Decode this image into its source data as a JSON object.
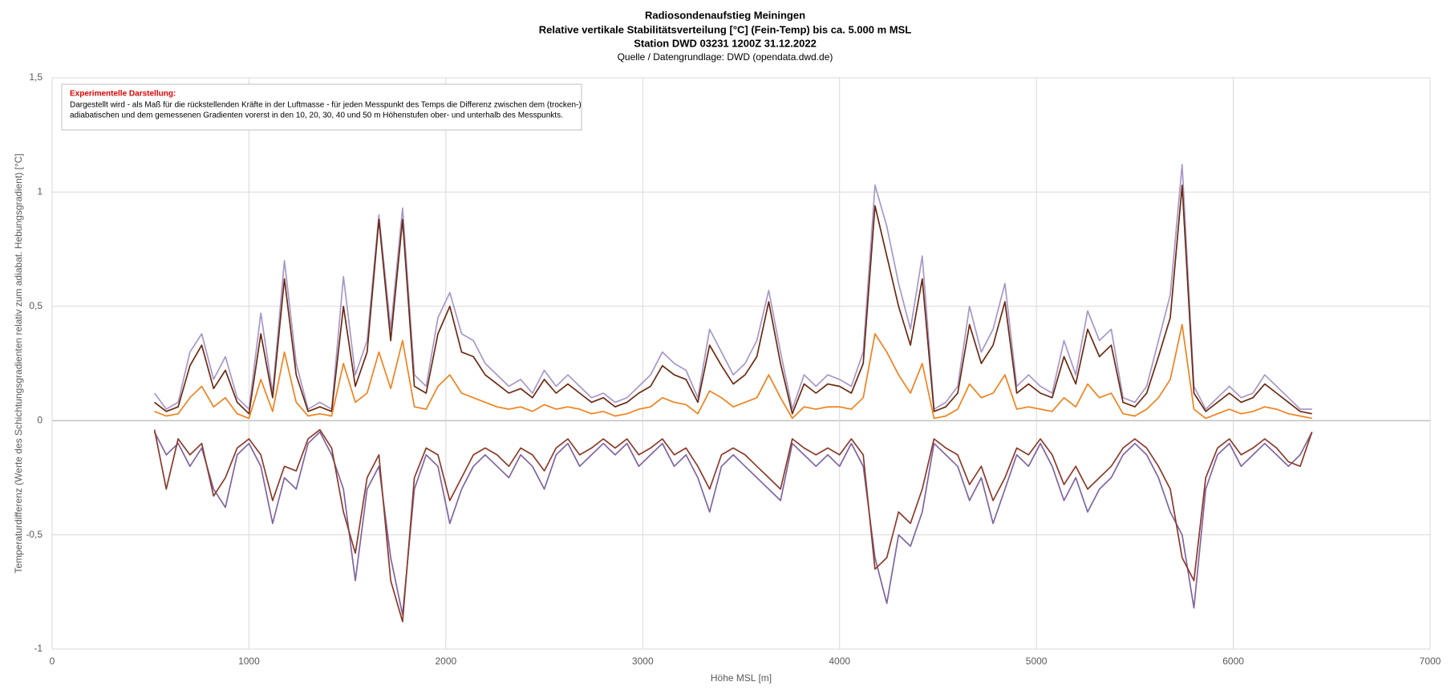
{
  "chart_data": {
    "type": "line",
    "title": [
      "Radiosondenaufstieg Meiningen",
      "Relative vertikale Stabilitätsverteilung [°C] (Fein-Temp) bis ca. 5.000 m MSL",
      "Station DWD 03231 1200Z 31.12.2022"
    ],
    "subtitle": "Quelle / Datengrundlage: DWD (opendata.dwd.de)",
    "annotation": {
      "title": "Experimentelle Darstellung:",
      "lines": [
        "Dargestellt wird - als Maß für die rückstellenden Kräfte in der Luftmasse - für jeden Messpunkt des Temps  die Differenz zwischen dem (trocken-)",
        "adiabatischen und dem gemessenen Gradienten vorerst in den 10, 20, 30, 40 und 50 m Höhenstufen ober- und unterhalb des Messpunkts."
      ]
    },
    "xlabel": "Höhe MSL [m]",
    "ylabel": "Temperaturdifferenz (Werte des Schichtungsgradienten relativ zum  adiabat. Hebungsgradient) [°C]",
    "xlim": [
      0,
      7000
    ],
    "xticks": [
      0,
      1000,
      2000,
      3000,
      4000,
      5000,
      6000,
      7000
    ],
    "ylim": [
      -1,
      1.5
    ],
    "yticks": [
      {
        "value": -1,
        "label": "-1"
      },
      {
        "value": -0.5,
        "label": "-0,5"
      },
      0,
      1,
      {
        "value": 0.5,
        "label": "0,5"
      },
      {
        "value": 1.5,
        "label": "1,5"
      }
    ],
    "grid": true,
    "x": [
      520,
      580,
      640,
      700,
      760,
      820,
      880,
      940,
      1000,
      1060,
      1120,
      1180,
      1240,
      1300,
      1360,
      1420,
      1480,
      1540,
      1600,
      1660,
      1720,
      1780,
      1840,
      1900,
      1960,
      2020,
      2080,
      2140,
      2200,
      2260,
      2320,
      2380,
      2440,
      2500,
      2560,
      2620,
      2680,
      2740,
      2800,
      2860,
      2920,
      2980,
      3040,
      3100,
      3160,
      3220,
      3280,
      3340,
      3400,
      3460,
      3520,
      3580,
      3640,
      3700,
      3760,
      3820,
      3880,
      3940,
      4000,
      4060,
      4120,
      4180,
      4240,
      4300,
      4360,
      4420,
      4480,
      4540,
      4600,
      4660,
      4720,
      4780,
      4840,
      4900,
      4960,
      5020,
      5080,
      5140,
      5200,
      5260,
      5320,
      5380,
      5440,
      5500,
      5560,
      5620,
      5680,
      5740,
      5800,
      5860,
      5920,
      5980,
      6040,
      6100,
      6160,
      6220,
      6280,
      6340,
      6400
    ],
    "series": [
      {
        "color": "#8064a2",
        "values": [
          -0.05,
          -0.15,
          -0.1,
          -0.2,
          -0.12,
          -0.3,
          -0.38,
          -0.15,
          -0.1,
          -0.2,
          -0.45,
          -0.25,
          -0.3,
          -0.1,
          -0.05,
          -0.15,
          -0.3,
          -0.7,
          -0.3,
          -0.2,
          -0.6,
          -0.85,
          -0.3,
          -0.15,
          -0.2,
          -0.45,
          -0.3,
          -0.2,
          -0.15,
          -0.2,
          -0.25,
          -0.15,
          -0.2,
          -0.3,
          -0.15,
          -0.1,
          -0.2,
          -0.15,
          -0.1,
          -0.15,
          -0.1,
          -0.2,
          -0.15,
          -0.1,
          -0.2,
          -0.15,
          -0.25,
          -0.4,
          -0.2,
          -0.15,
          -0.2,
          -0.25,
          -0.3,
          -0.35,
          -0.1,
          -0.15,
          -0.2,
          -0.15,
          -0.2,
          -0.1,
          -0.2,
          -0.6,
          -0.8,
          -0.5,
          -0.55,
          -0.4,
          -0.1,
          -0.15,
          -0.2,
          -0.35,
          -0.25,
          -0.45,
          -0.3,
          -0.15,
          -0.2,
          -0.1,
          -0.2,
          -0.35,
          -0.25,
          -0.4,
          -0.3,
          -0.25,
          -0.15,
          -0.1,
          -0.15,
          -0.25,
          -0.4,
          -0.5,
          -0.82,
          -0.3,
          -0.15,
          -0.1,
          -0.2,
          -0.15,
          -0.1,
          -0.15,
          -0.2,
          -0.15,
          -0.05
        ]
      },
      {
        "color": "#8b3a2a",
        "values": [
          -0.04,
          -0.3,
          -0.08,
          -0.15,
          -0.1,
          -0.33,
          -0.25,
          -0.12,
          -0.08,
          -0.15,
          -0.35,
          -0.2,
          -0.22,
          -0.08,
          -0.04,
          -0.12,
          -0.4,
          -0.58,
          -0.25,
          -0.15,
          -0.7,
          -0.88,
          -0.25,
          -0.12,
          -0.15,
          -0.35,
          -0.25,
          -0.15,
          -0.12,
          -0.15,
          -0.2,
          -0.12,
          -0.15,
          -0.22,
          -0.12,
          -0.08,
          -0.15,
          -0.12,
          -0.08,
          -0.12,
          -0.08,
          -0.15,
          -0.12,
          -0.08,
          -0.15,
          -0.12,
          -0.2,
          -0.3,
          -0.15,
          -0.12,
          -0.15,
          -0.2,
          -0.25,
          -0.3,
          -0.08,
          -0.12,
          -0.15,
          -0.12,
          -0.15,
          -0.08,
          -0.15,
          -0.65,
          -0.6,
          -0.4,
          -0.45,
          -0.3,
          -0.08,
          -0.12,
          -0.15,
          -0.28,
          -0.2,
          -0.35,
          -0.25,
          -0.12,
          -0.15,
          -0.08,
          -0.15,
          -0.28,
          -0.2,
          -0.3,
          -0.25,
          -0.2,
          -0.12,
          -0.08,
          -0.12,
          -0.2,
          -0.3,
          -0.6,
          -0.7,
          -0.25,
          -0.12,
          -0.08,
          -0.15,
          -0.12,
          -0.08,
          -0.12,
          -0.18,
          -0.2,
          -0.05
        ]
      },
      {
        "color": "#a897c7",
        "values": [
          0.12,
          0.05,
          0.08,
          0.3,
          0.38,
          0.18,
          0.28,
          0.1,
          0.05,
          0.47,
          0.12,
          0.7,
          0.25,
          0.05,
          0.08,
          0.05,
          0.63,
          0.2,
          0.35,
          0.9,
          0.4,
          0.93,
          0.2,
          0.15,
          0.45,
          0.56,
          0.38,
          0.35,
          0.25,
          0.2,
          0.15,
          0.18,
          0.12,
          0.22,
          0.15,
          0.2,
          0.15,
          0.1,
          0.12,
          0.08,
          0.1,
          0.15,
          0.2,
          0.3,
          0.25,
          0.22,
          0.1,
          0.4,
          0.3,
          0.2,
          0.25,
          0.35,
          0.57,
          0.3,
          0.05,
          0.2,
          0.15,
          0.2,
          0.18,
          0.15,
          0.3,
          1.03,
          0.85,
          0.6,
          0.4,
          0.72,
          0.05,
          0.08,
          0.15,
          0.5,
          0.3,
          0.4,
          0.6,
          0.15,
          0.2,
          0.15,
          0.12,
          0.35,
          0.2,
          0.48,
          0.35,
          0.4,
          0.1,
          0.08,
          0.15,
          0.35,
          0.55,
          1.12,
          0.15,
          0.05,
          0.1,
          0.15,
          0.1,
          0.12,
          0.2,
          0.15,
          0.1,
          0.05,
          0.05
        ]
      },
      {
        "color": "#6b2a12",
        "values": [
          0.08,
          0.04,
          0.06,
          0.24,
          0.33,
          0.14,
          0.22,
          0.08,
          0.03,
          0.38,
          0.1,
          0.62,
          0.2,
          0.04,
          0.06,
          0.04,
          0.5,
          0.15,
          0.3,
          0.88,
          0.35,
          0.88,
          0.15,
          0.12,
          0.38,
          0.5,
          0.3,
          0.28,
          0.2,
          0.16,
          0.12,
          0.14,
          0.1,
          0.18,
          0.12,
          0.16,
          0.12,
          0.08,
          0.1,
          0.06,
          0.08,
          0.12,
          0.15,
          0.24,
          0.2,
          0.18,
          0.08,
          0.33,
          0.24,
          0.16,
          0.2,
          0.28,
          0.52,
          0.25,
          0.03,
          0.16,
          0.12,
          0.16,
          0.15,
          0.12,
          0.25,
          0.94,
          0.72,
          0.5,
          0.33,
          0.62,
          0.04,
          0.06,
          0.12,
          0.42,
          0.25,
          0.33,
          0.52,
          0.12,
          0.16,
          0.12,
          0.1,
          0.28,
          0.16,
          0.4,
          0.28,
          0.33,
          0.08,
          0.06,
          0.12,
          0.28,
          0.45,
          1.03,
          0.12,
          0.04,
          0.08,
          0.12,
          0.08,
          0.1,
          0.16,
          0.12,
          0.08,
          0.04,
          0.03
        ]
      },
      {
        "color": "#f0821e",
        "values": [
          0.04,
          0.02,
          0.03,
          0.1,
          0.15,
          0.06,
          0.1,
          0.03,
          0.01,
          0.18,
          0.04,
          0.3,
          0.08,
          0.02,
          0.03,
          0.02,
          0.25,
          0.08,
          0.12,
          0.3,
          0.14,
          0.35,
          0.06,
          0.05,
          0.15,
          0.2,
          0.12,
          0.1,
          0.08,
          0.06,
          0.05,
          0.06,
          0.04,
          0.07,
          0.05,
          0.06,
          0.05,
          0.03,
          0.04,
          0.02,
          0.03,
          0.05,
          0.06,
          0.1,
          0.08,
          0.07,
          0.03,
          0.13,
          0.1,
          0.06,
          0.08,
          0.1,
          0.2,
          0.1,
          0.01,
          0.06,
          0.05,
          0.06,
          0.06,
          0.05,
          0.1,
          0.38,
          0.3,
          0.2,
          0.12,
          0.25,
          0.01,
          0.02,
          0.05,
          0.16,
          0.1,
          0.12,
          0.2,
          0.05,
          0.06,
          0.05,
          0.04,
          0.1,
          0.06,
          0.16,
          0.1,
          0.12,
          0.03,
          0.02,
          0.05,
          0.1,
          0.18,
          0.42,
          0.05,
          0.01,
          0.03,
          0.05,
          0.03,
          0.04,
          0.06,
          0.05,
          0.03,
          0.02,
          0.01
        ]
      }
    ]
  }
}
